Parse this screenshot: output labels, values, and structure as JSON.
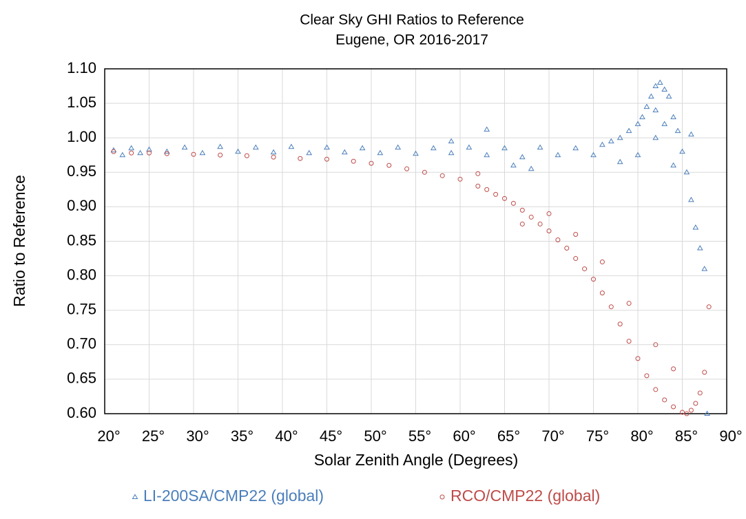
{
  "chart_data": {
    "type": "scatter",
    "title": "Clear Sky GHI Ratios to Reference",
    "subtitle": "Eugene, OR 2016-2017",
    "x_label": "Solar Zenith Angle (Degrees)",
    "y_label": "Ratio to Reference",
    "xlim": [
      20,
      90
    ],
    "xticks": [
      {
        "value": 20,
        "label": "20°"
      },
      {
        "value": 25,
        "label": "25°"
      },
      {
        "value": 30,
        "label": "30°"
      },
      {
        "value": 35,
        "label": "35°"
      },
      {
        "value": 40,
        "label": "40°"
      },
      {
        "value": 45,
        "label": "45°"
      },
      {
        "value": 50,
        "label": "50°"
      },
      {
        "value": 55,
        "label": "55°"
      },
      {
        "value": 60,
        "label": "60°"
      },
      {
        "value": 65,
        "label": "65°"
      },
      {
        "value": 70,
        "label": "70°"
      },
      {
        "value": 75,
        "label": "75°"
      },
      {
        "value": 80,
        "label": "80°"
      },
      {
        "value": 85,
        "label": "85°"
      },
      {
        "value": 90,
        "label": "90°"
      }
    ],
    "ylim": [
      0.6,
      1.1
    ],
    "yticks": [
      {
        "value": 0.6,
        "label": "0.60"
      },
      0.65,
      {
        "value": 0.7,
        "label": "0.70"
      },
      0.75,
      {
        "value": 0.8,
        "label": "0.80"
      },
      0.85,
      {
        "value": 0.9,
        "label": "0.90"
      },
      0.95,
      {
        "value": 1.0,
        "label": "1.00"
      },
      1.05,
      {
        "value": 1.1,
        "label": "1.10"
      }
    ],
    "grid": true,
    "legend": "bottom",
    "series": [
      {
        "name": "LI-200SA/CMP22 (global)",
        "color": "#4a7ebb",
        "marker": "triangle",
        "x": [
          21,
          22,
          23,
          24,
          25,
          27,
          29,
          31,
          33,
          35,
          37,
          39,
          41,
          43,
          45,
          47,
          49,
          51,
          53,
          55,
          57,
          59,
          61,
          63,
          65,
          67,
          69,
          71,
          73,
          75,
          76,
          77,
          78,
          79,
          80,
          80.5,
          81,
          81.5,
          82,
          82,
          82.5,
          83,
          83,
          83.5,
          84,
          84.5,
          85,
          85.5,
          86,
          86.5,
          87,
          87.5,
          87.8,
          59,
          63,
          66,
          68,
          78,
          80,
          82,
          84,
          86
        ],
        "values": [
          0.982,
          0.975,
          0.985,
          0.978,
          0.983,
          0.98,
          0.986,
          0.978,
          0.987,
          0.98,
          0.986,
          0.979,
          0.987,
          0.978,
          0.986,
          0.979,
          0.985,
          0.978,
          0.986,
          0.977,
          0.985,
          0.978,
          0.986,
          0.975,
          0.985,
          0.972,
          0.986,
          0.975,
          0.985,
          0.975,
          0.99,
          0.995,
          1.0,
          1.01,
          1.02,
          1.03,
          1.045,
          1.06,
          1.075,
          1.04,
          1.08,
          1.07,
          1.02,
          1.06,
          1.03,
          1.01,
          0.98,
          0.95,
          0.91,
          0.87,
          0.84,
          0.81,
          0.6,
          0.995,
          1.012,
          0.96,
          0.955,
          0.965,
          0.975,
          1.0,
          0.96,
          1.005
        ]
      },
      {
        "name": "RCO/CMP22 (global)",
        "color": "#be4b48",
        "marker": "circle",
        "x": [
          21,
          23,
          25,
          27,
          30,
          33,
          36,
          39,
          42,
          45,
          48,
          50,
          52,
          54,
          56,
          58,
          60,
          62,
          63,
          64,
          65,
          66,
          67,
          68,
          69,
          70,
          71,
          72,
          73,
          74,
          75,
          76,
          77,
          78,
          79,
          80,
          81,
          82,
          83,
          84,
          85,
          85.5,
          86,
          86.5,
          87,
          87.5,
          88,
          67,
          70,
          73,
          76,
          79,
          82,
          84,
          62
        ],
        "values": [
          0.98,
          0.978,
          0.978,
          0.977,
          0.976,
          0.975,
          0.974,
          0.972,
          0.97,
          0.969,
          0.966,
          0.963,
          0.96,
          0.955,
          0.95,
          0.945,
          0.94,
          0.93,
          0.925,
          0.918,
          0.912,
          0.905,
          0.895,
          0.885,
          0.875,
          0.865,
          0.852,
          0.84,
          0.825,
          0.81,
          0.795,
          0.775,
          0.755,
          0.73,
          0.705,
          0.68,
          0.655,
          0.635,
          0.62,
          0.61,
          0.602,
          0.6,
          0.605,
          0.615,
          0.63,
          0.66,
          0.755,
          0.875,
          0.89,
          0.86,
          0.82,
          0.76,
          0.7,
          0.665,
          0.948
        ]
      }
    ]
  }
}
